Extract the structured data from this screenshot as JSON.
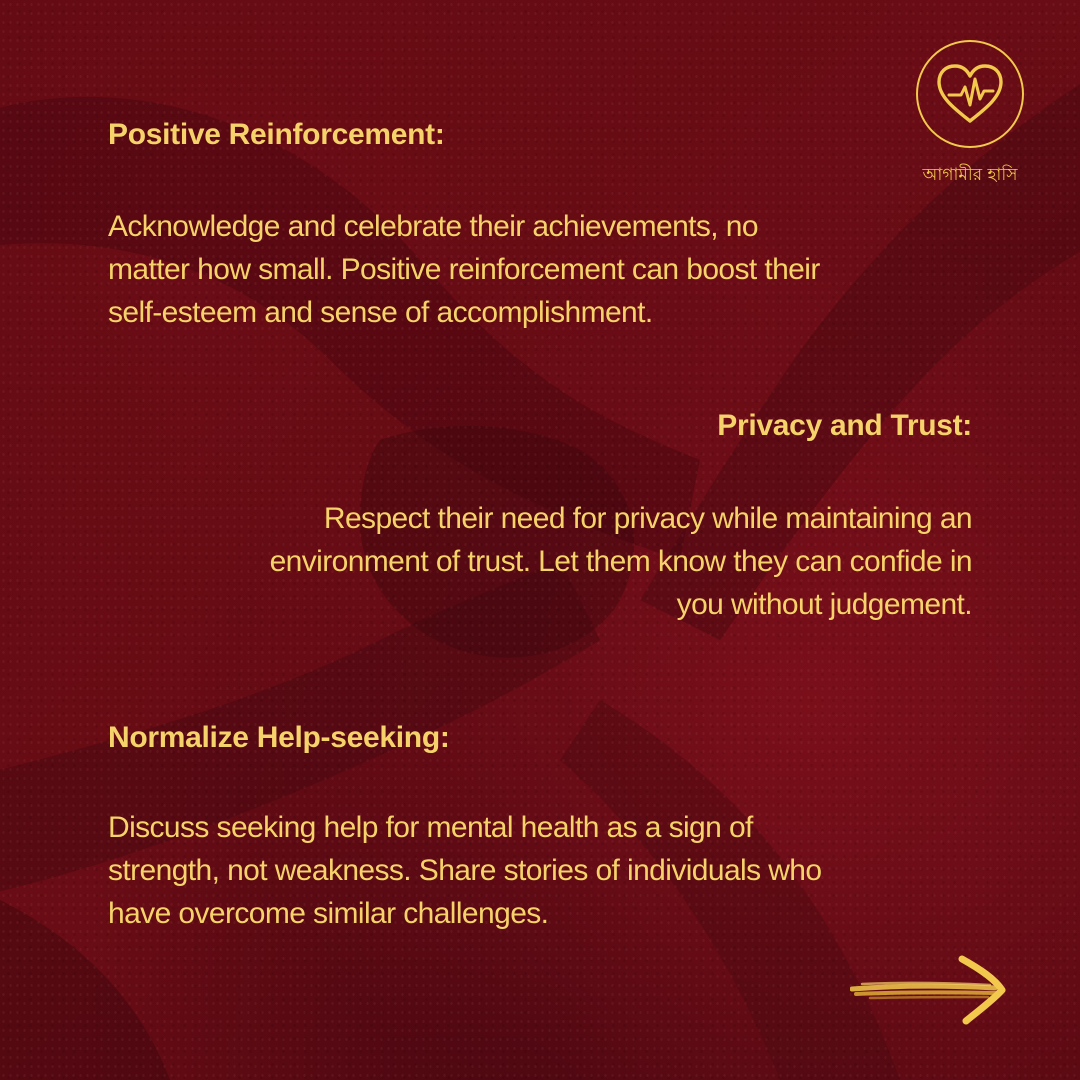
{
  "logo": {
    "icon": "heart-pulse-icon",
    "text": "আগামীর হাসি",
    "accent_color": "#f2c94c"
  },
  "sections": [
    {
      "heading": "Positive Reinforcement:",
      "lines": [
        "Acknowledge and celebrate their achievements, no",
        "matter how small. Positive reinforcement can boost their",
        "self-esteem and sense of accomplishment."
      ],
      "align": "left"
    },
    {
      "heading": "Privacy and Trust:",
      "lines": [
        "Respect their need for privacy while maintaining an",
        "environment of trust. Let them know they can confide in",
        "you without judgement."
      ],
      "align": "right"
    },
    {
      "heading": "Normalize Help-seeking:",
      "lines": [
        "Discuss seeking help for mental health as a sign of",
        "strength, not weakness. Share stories of individuals who",
        "have overcome similar challenges."
      ],
      "align": "left"
    }
  ],
  "next_arrow": {
    "icon": "arrow-right-icon"
  },
  "colors": {
    "text": "#f6d36a",
    "background": "#5e0a12"
  }
}
